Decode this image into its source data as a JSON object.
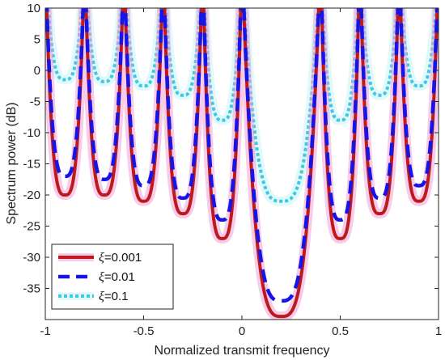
{
  "chart_data": {
    "type": "line",
    "title": "",
    "xlabel": "Normalized transmit frequency",
    "ylabel": "Spectrum power (dB)",
    "xlim": [
      -1,
      1
    ],
    "ylim": [
      -40,
      10
    ],
    "xticks": [
      -1,
      -0.5,
      0,
      0.5,
      1
    ],
    "xtick_labels": [
      "-1",
      "-0.5",
      "0",
      "0.5",
      "1"
    ],
    "yticks": [
      10,
      5,
      0,
      -5,
      -10,
      -15,
      -20,
      -25,
      -30,
      -35
    ],
    "ytick_labels": [
      "10",
      "5",
      "0",
      "-5",
      "-10",
      "-15",
      "-20",
      "-25",
      "-30",
      "-35"
    ],
    "grid": false,
    "legend_position": "bottom-left",
    "peak_frequencies": [
      -1,
      -0.8,
      -0.6,
      -0.4,
      -0.2,
      0,
      0.4,
      0.6,
      0.8,
      1
    ],
    "series": [
      {
        "name": "ξ=0.001",
        "legend_symbol": "ξ",
        "legend_value": "=0.001",
        "color": "#c0191c",
        "glow": "#f0a0d8",
        "dash": "solid",
        "minima": [
          {
            "x": -0.9,
            "y": -20
          },
          {
            "x": -0.7,
            "y": -20
          },
          {
            "x": -0.5,
            "y": -21
          },
          {
            "x": -0.3,
            "y": -23
          },
          {
            "x": -0.1,
            "y": -27
          },
          {
            "x": 0.2,
            "y": -39.5
          },
          {
            "x": 0.5,
            "y": -27
          },
          {
            "x": 0.7,
            "y": -23
          },
          {
            "x": 0.9,
            "y": -21
          }
        ]
      },
      {
        "name": "ξ=0.01",
        "legend_symbol": "ξ",
        "legend_value": "=0.01",
        "color": "#1515e6",
        "glow": "",
        "dash": "dashed",
        "minima": [
          {
            "x": -0.9,
            "y": -17
          },
          {
            "x": -0.7,
            "y": -17.5
          },
          {
            "x": -0.5,
            "y": -18.5
          },
          {
            "x": -0.3,
            "y": -20.5
          },
          {
            "x": -0.1,
            "y": -24
          },
          {
            "x": 0.2,
            "y": -37
          },
          {
            "x": 0.5,
            "y": -24
          },
          {
            "x": 0.7,
            "y": -20.5
          },
          {
            "x": 0.9,
            "y": -18.5
          }
        ]
      },
      {
        "name": "ξ=0.1",
        "legend_symbol": "ξ",
        "legend_value": "=0.1",
        "color": "#3cc8e6",
        "glow": "#c8f4f4",
        "dash": "dotted",
        "minima": [
          {
            "x": -0.9,
            "y": -1.5
          },
          {
            "x": -0.7,
            "y": -1.8
          },
          {
            "x": -0.5,
            "y": -2.5
          },
          {
            "x": -0.3,
            "y": -4
          },
          {
            "x": -0.1,
            "y": -8
          },
          {
            "x": 0.2,
            "y": -21
          },
          {
            "x": 0.5,
            "y": -8
          },
          {
            "x": 0.7,
            "y": -4
          },
          {
            "x": 0.9,
            "y": -2.5
          }
        ]
      }
    ]
  }
}
